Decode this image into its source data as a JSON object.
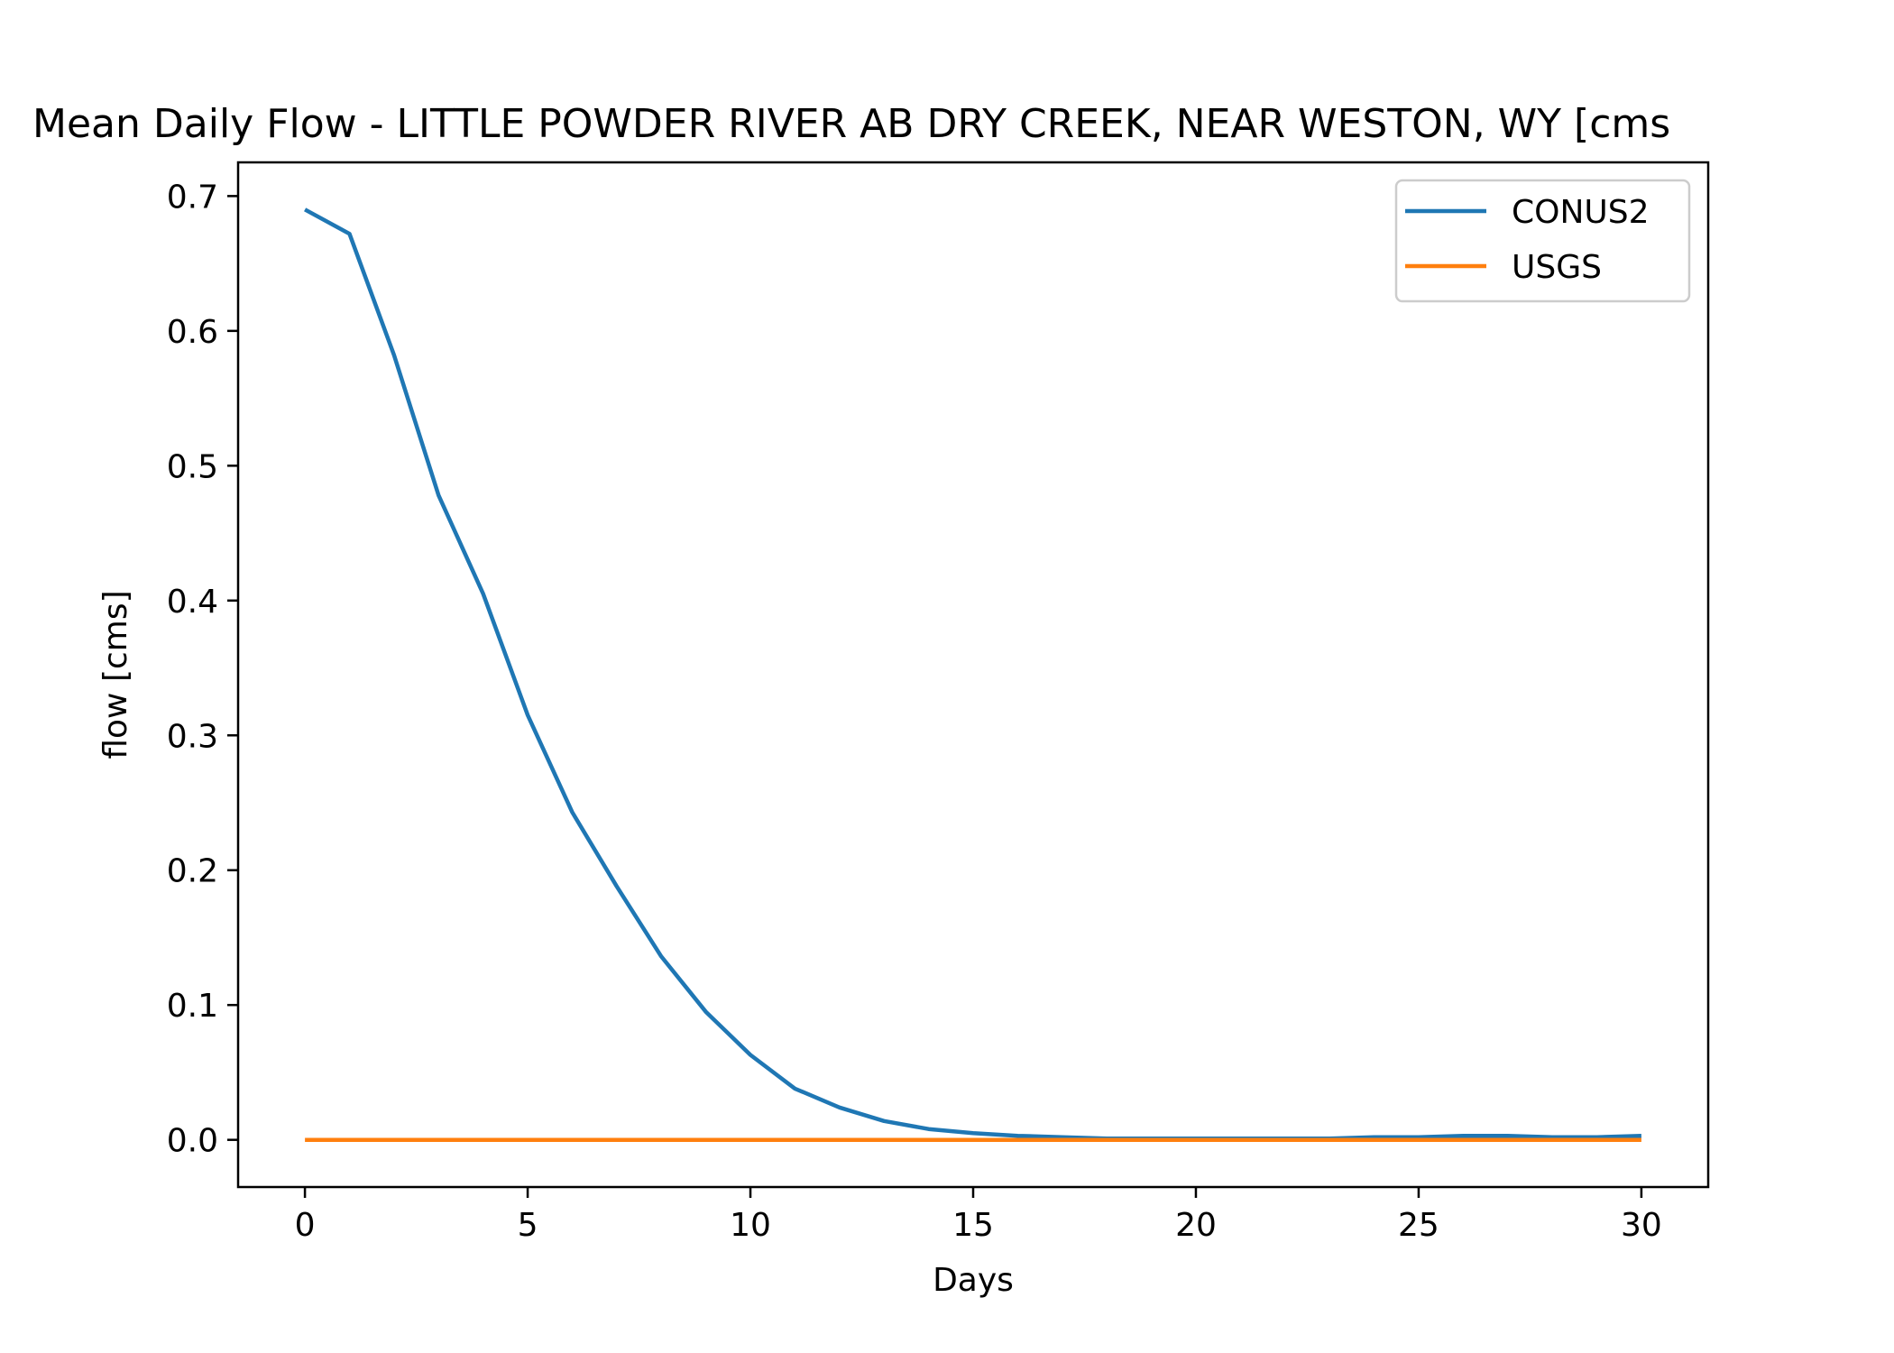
{
  "chart_data": {
    "type": "line",
    "title": "Mean Daily Flow - LITTLE POWDER RIVER AB DRY CREEK, NEAR WESTON, WY [cms",
    "xlabel": "Days",
    "ylabel": "flow [cms]",
    "xlim": [
      -1.5,
      31.5
    ],
    "ylim": [
      -0.035,
      0.725
    ],
    "xticks": [
      0,
      5,
      10,
      15,
      20,
      25,
      30
    ],
    "xtick_labels": [
      "0",
      "5",
      "10",
      "15",
      "20",
      "25",
      "30"
    ],
    "yticks": [
      0.0,
      0.1,
      0.2,
      0.3,
      0.4,
      0.5,
      0.6,
      0.7
    ],
    "ytick_labels": [
      "0.0",
      "0.1",
      "0.2",
      "0.3",
      "0.4",
      "0.5",
      "0.6",
      "0.7"
    ],
    "grid": false,
    "legend_position": "top-right",
    "x": [
      0,
      1,
      2,
      3,
      4,
      5,
      6,
      7,
      8,
      9,
      10,
      11,
      12,
      13,
      14,
      15,
      16,
      17,
      18,
      19,
      20,
      21,
      22,
      23,
      24,
      25,
      26,
      27,
      28,
      29,
      30
    ],
    "series": [
      {
        "name": "CONUS2",
        "color": "#1f77b4",
        "values": [
          0.69,
          0.672,
          0.582,
          0.478,
          0.405,
          0.315,
          0.243,
          0.188,
          0.136,
          0.095,
          0.063,
          0.038,
          0.024,
          0.014,
          0.008,
          0.005,
          0.003,
          0.002,
          0.001,
          0.001,
          0.001,
          0.001,
          0.001,
          0.001,
          0.002,
          0.002,
          0.003,
          0.003,
          0.002,
          0.002,
          0.003
        ]
      },
      {
        "name": "USGS",
        "color": "#ff7f0e",
        "values": [
          0,
          0,
          0,
          0,
          0,
          0,
          0,
          0,
          0,
          0,
          0,
          0,
          0,
          0,
          0,
          0,
          0,
          0,
          0,
          0,
          0,
          0,
          0,
          0,
          0,
          0,
          0,
          0,
          0,
          0,
          0
        ]
      }
    ]
  }
}
